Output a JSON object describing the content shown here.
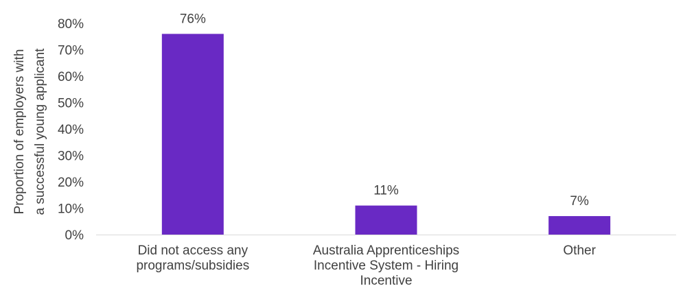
{
  "chart_data": {
    "type": "bar",
    "categories": [
      "Did not access any\nprograms/subsidies",
      "Australia Apprenticeships\nIncentive System - Hiring\nIncentive",
      "Other"
    ],
    "values": [
      76,
      11,
      7
    ],
    "data_labels": [
      "76%",
      "11%",
      "7%"
    ],
    "ylabel": "Proportion of employers with\na successful young applicant",
    "ylim": [
      0,
      80
    ],
    "yticks": [
      "0%",
      "10%",
      "20%",
      "30%",
      "40%",
      "50%",
      "60%",
      "70%",
      "80%"
    ],
    "grid": false,
    "legend": "none",
    "bar_color": "#6929C4"
  }
}
